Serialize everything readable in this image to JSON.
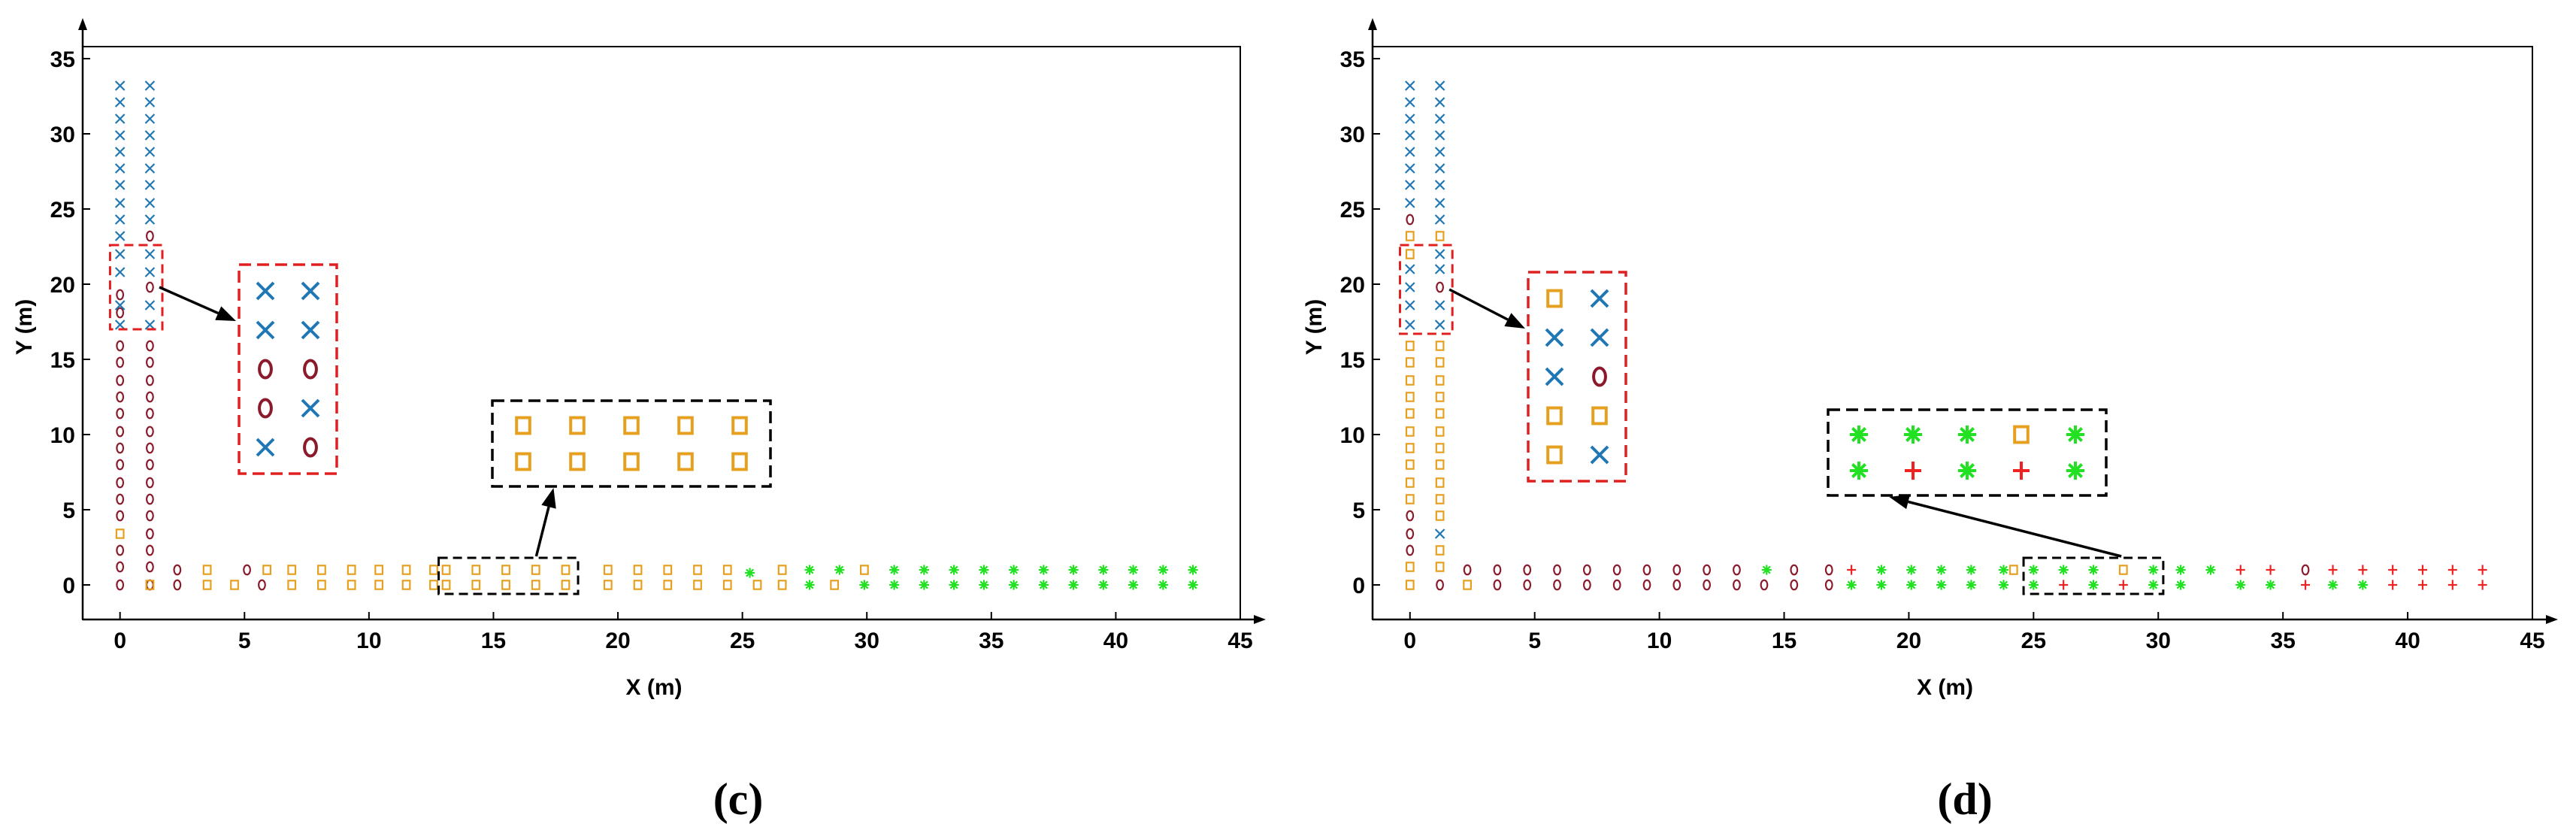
{
  "colors": {
    "x_marker": "#1f77b4",
    "o_marker": "#8b1a2b",
    "square_marker": "#e6a020",
    "star_marker": "#22e022",
    "plus_marker": "#ee2222",
    "zoom_box_red": "#e02020",
    "zoom_box_black": "#000000"
  },
  "chart_data": [
    {
      "type": "scatter",
      "panel_label": "c",
      "panel_label_left": "(",
      "panel_label_right": ")",
      "xlabel": "X (m)",
      "ylabel": "Y (m)",
      "xlim": [
        -1.5,
        45
      ],
      "ylim": [
        -2.3,
        35.8
      ],
      "xticks": [
        "0",
        "5",
        "10",
        "15",
        "20",
        "25",
        "30",
        "35",
        "40",
        "45"
      ],
      "yticks": [
        "0",
        "5",
        "10",
        "15",
        "20",
        "25",
        "30",
        "35"
      ],
      "grid": false,
      "markers": {
        "x": [
          [
            0,
            17.3
          ],
          [
            0,
            18.6
          ],
          [
            0,
            20.8
          ],
          [
            0,
            22.0
          ],
          [
            0,
            23.2
          ],
          [
            0,
            24.3
          ],
          [
            0,
            25.4
          ],
          [
            0,
            26.6
          ],
          [
            0,
            27.7
          ],
          [
            0,
            28.8
          ],
          [
            0,
            29.9
          ],
          [
            0,
            31.0
          ],
          [
            0,
            32.1
          ],
          [
            0,
            33.2
          ],
          [
            1.2,
            17.3
          ],
          [
            1.2,
            18.6
          ],
          [
            1.2,
            20.8
          ],
          [
            1.2,
            22.0
          ],
          [
            1.2,
            24.3
          ],
          [
            1.2,
            25.4
          ],
          [
            1.2,
            26.6
          ],
          [
            1.2,
            27.7
          ],
          [
            1.2,
            28.8
          ],
          [
            1.2,
            29.9
          ],
          [
            1.2,
            31.0
          ],
          [
            1.2,
            32.1
          ],
          [
            1.2,
            33.2
          ]
        ],
        "o": [
          [
            0,
            0
          ],
          [
            0,
            1.2
          ],
          [
            0,
            2.3
          ],
          [
            0,
            4.6
          ],
          [
            0,
            5.7
          ],
          [
            0,
            6.8
          ],
          [
            0,
            8.0
          ],
          [
            0,
            9.1
          ],
          [
            0,
            10.2
          ],
          [
            0,
            11.4
          ],
          [
            0,
            12.5
          ],
          [
            0,
            13.6
          ],
          [
            0,
            14.8
          ],
          [
            0,
            15.9
          ],
          [
            0,
            18.1
          ],
          [
            0,
            19.3
          ],
          [
            1.2,
            0
          ],
          [
            1.2,
            1.2
          ],
          [
            1.2,
            2.3
          ],
          [
            1.2,
            3.4
          ],
          [
            1.2,
            4.6
          ],
          [
            1.2,
            5.7
          ],
          [
            1.2,
            6.8
          ],
          [
            1.2,
            8.0
          ],
          [
            1.2,
            9.1
          ],
          [
            1.2,
            10.2
          ],
          [
            1.2,
            11.4
          ],
          [
            1.2,
            12.5
          ],
          [
            1.2,
            13.6
          ],
          [
            1.2,
            14.8
          ],
          [
            1.2,
            15.9
          ],
          [
            1.2,
            19.8
          ],
          [
            1.2,
            23.2
          ],
          [
            2.3,
            0
          ],
          [
            2.3,
            1.0
          ],
          [
            5.7,
            0
          ],
          [
            5.1,
            1.0
          ]
        ],
        "square": [
          [
            0,
            3.4
          ],
          [
            1.2,
            0
          ],
          [
            3.5,
            0
          ],
          [
            3.5,
            1.0
          ],
          [
            4.6,
            0
          ],
          [
            5.9,
            1.0
          ],
          [
            6.9,
            0
          ],
          [
            6.9,
            1.0
          ],
          [
            8.1,
            0
          ],
          [
            8.1,
            1.0
          ],
          [
            9.3,
            0
          ],
          [
            9.3,
            1.0
          ],
          [
            10.4,
            0
          ],
          [
            10.4,
            1.0
          ],
          [
            11.5,
            0
          ],
          [
            11.5,
            1.0
          ],
          [
            12.6,
            0
          ],
          [
            12.6,
            1.0
          ],
          [
            13.1,
            0
          ],
          [
            13.1,
            1.0
          ],
          [
            14.3,
            0
          ],
          [
            14.3,
            1.0
          ],
          [
            15.5,
            0
          ],
          [
            15.5,
            1.0
          ],
          [
            16.7,
            0
          ],
          [
            16.7,
            1.0
          ],
          [
            17.9,
            0
          ],
          [
            17.9,
            1.0
          ],
          [
            19.6,
            0
          ],
          [
            19.6,
            1.0
          ],
          [
            20.8,
            0
          ],
          [
            20.8,
            1.0
          ],
          [
            22.0,
            0
          ],
          [
            22.0,
            1.0
          ],
          [
            23.2,
            0
          ],
          [
            23.2,
            1.0
          ],
          [
            24.4,
            0
          ],
          [
            24.4,
            1.0
          ],
          [
            25.6,
            0
          ],
          [
            26.6,
            0
          ],
          [
            26.6,
            1.0
          ],
          [
            28.7,
            0
          ],
          [
            29.9,
            1.0
          ]
        ],
        "star": [
          [
            25.3,
            0.8
          ],
          [
            27.7,
            0
          ],
          [
            27.7,
            1.0
          ],
          [
            28.9,
            1.0
          ],
          [
            29.9,
            0
          ],
          [
            31.1,
            0
          ],
          [
            31.1,
            1.0
          ],
          [
            32.3,
            0
          ],
          [
            32.3,
            1.0
          ],
          [
            33.5,
            0
          ],
          [
            33.5,
            1.0
          ],
          [
            34.7,
            0
          ],
          [
            34.7,
            1.0
          ],
          [
            35.9,
            0
          ],
          [
            35.9,
            1.0
          ],
          [
            37.1,
            0
          ],
          [
            37.1,
            1.0
          ],
          [
            38.3,
            0
          ],
          [
            38.3,
            1.0
          ],
          [
            39.5,
            0
          ],
          [
            39.5,
            1.0
          ],
          [
            40.7,
            0
          ],
          [
            40.7,
            1.0
          ],
          [
            41.9,
            0
          ],
          [
            41.9,
            1.0
          ],
          [
            43.1,
            0
          ],
          [
            43.1,
            1.0
          ]
        ],
        "plus": []
      },
      "zoom_src": [
        {
          "color": "red",
          "x": [
            -0.4,
            1.7
          ],
          "y": [
            17.0,
            22.6
          ]
        },
        {
          "color": "black",
          "x": [
            12.8,
            18.4
          ],
          "y": [
            -0.6,
            1.8
          ]
        }
      ],
      "insets": [
        {
          "color": "red",
          "cols": 2,
          "rows": [
            [
              "x",
              "x"
            ],
            [
              "x",
              "x"
            ],
            [
              "o",
              "o"
            ],
            [
              "o",
              "x"
            ],
            [
              "x",
              "o"
            ]
          ]
        },
        {
          "color": "black",
          "cols": 5,
          "rows": [
            [
              "square",
              "square",
              "square",
              "square",
              "square"
            ],
            [
              "square",
              "square",
              "square",
              "square",
              "square"
            ]
          ]
        }
      ]
    },
    {
      "type": "scatter",
      "panel_label": "d",
      "panel_label_left": "(",
      "panel_label_right": ")",
      "xlabel": "X (m)",
      "ylabel": "Y (m)",
      "xlim": [
        -1.5,
        45
      ],
      "ylim": [
        -2.3,
        35.8
      ],
      "xticks": [
        "0",
        "5",
        "10",
        "15",
        "20",
        "25",
        "30",
        "35",
        "40",
        "45"
      ],
      "yticks": [
        "0",
        "5",
        "10",
        "15",
        "20",
        "25",
        "30",
        "35"
      ],
      "grid": false,
      "markers": {
        "x": [
          [
            0,
            17.3
          ],
          [
            0,
            18.6
          ],
          [
            0,
            19.8
          ],
          [
            0,
            21.0
          ],
          [
            0,
            25.4
          ],
          [
            0,
            26.6
          ],
          [
            0,
            27.7
          ],
          [
            0,
            28.8
          ],
          [
            0,
            29.9
          ],
          [
            0,
            31.0
          ],
          [
            0,
            32.1
          ],
          [
            0,
            33.2
          ],
          [
            1.2,
            3.4
          ],
          [
            1.2,
            17.3
          ],
          [
            1.2,
            18.6
          ],
          [
            1.2,
            21.0
          ],
          [
            1.2,
            22.0
          ],
          [
            1.2,
            24.3
          ],
          [
            1.2,
            25.4
          ],
          [
            1.2,
            26.6
          ],
          [
            1.2,
            27.7
          ],
          [
            1.2,
            28.8
          ],
          [
            1.2,
            29.9
          ],
          [
            1.2,
            31.0
          ],
          [
            1.2,
            32.1
          ],
          [
            1.2,
            33.2
          ]
        ],
        "o": [
          [
            0,
            2.3
          ],
          [
            0,
            3.4
          ],
          [
            0,
            4.6
          ],
          [
            0,
            24.3
          ],
          [
            1.2,
            0
          ],
          [
            1.2,
            19.8
          ],
          [
            2.3,
            1.0
          ],
          [
            3.5,
            0
          ],
          [
            3.5,
            1.0
          ],
          [
            4.7,
            0
          ],
          [
            4.7,
            1.0
          ],
          [
            5.9,
            0
          ],
          [
            5.9,
            1.0
          ],
          [
            7.1,
            0
          ],
          [
            7.1,
            1.0
          ],
          [
            8.3,
            0
          ],
          [
            8.3,
            1.0
          ],
          [
            9.5,
            0
          ],
          [
            9.5,
            1.0
          ],
          [
            10.7,
            0
          ],
          [
            10.7,
            1.0
          ],
          [
            11.9,
            0
          ],
          [
            11.9,
            1.0
          ],
          [
            13.1,
            0
          ],
          [
            13.1,
            1.0
          ],
          [
            14.2,
            0
          ],
          [
            15.4,
            0
          ],
          [
            15.4,
            1.0
          ],
          [
            16.8,
            0
          ],
          [
            16.8,
            1.0
          ],
          [
            35.9,
            1.0
          ]
        ],
        "square": [
          [
            0,
            0
          ],
          [
            0,
            1.2
          ],
          [
            0,
            5.7
          ],
          [
            0,
            6.8
          ],
          [
            0,
            8.0
          ],
          [
            0,
            9.1
          ],
          [
            0,
            10.2
          ],
          [
            0,
            11.4
          ],
          [
            0,
            12.5
          ],
          [
            0,
            13.6
          ],
          [
            0,
            14.8
          ],
          [
            0,
            15.9
          ],
          [
            0,
            22.0
          ],
          [
            0,
            23.2
          ],
          [
            1.2,
            1.2
          ],
          [
            1.2,
            2.3
          ],
          [
            1.2,
            4.6
          ],
          [
            1.2,
            5.7
          ],
          [
            1.2,
            6.8
          ],
          [
            1.2,
            8.0
          ],
          [
            1.2,
            9.1
          ],
          [
            1.2,
            10.2
          ],
          [
            1.2,
            11.4
          ],
          [
            1.2,
            12.5
          ],
          [
            1.2,
            13.6
          ],
          [
            1.2,
            14.8
          ],
          [
            1.2,
            15.9
          ],
          [
            1.2,
            23.2
          ],
          [
            2.3,
            0
          ],
          [
            24.2,
            1.0
          ],
          [
            28.6,
            1.0
          ]
        ],
        "star": [
          [
            14.3,
            1.0
          ],
          [
            17.7,
            0
          ],
          [
            18.9,
            0
          ],
          [
            18.9,
            1.0
          ],
          [
            20.1,
            0
          ],
          [
            20.1,
            1.0
          ],
          [
            21.3,
            0
          ],
          [
            21.3,
            1.0
          ],
          [
            22.5,
            0
          ],
          [
            22.5,
            1.0
          ],
          [
            23.8,
            0
          ],
          [
            23.8,
            1.0
          ],
          [
            25.0,
            0
          ],
          [
            25.0,
            1.0
          ],
          [
            26.2,
            1.0
          ],
          [
            27.4,
            0
          ],
          [
            27.4,
            1.0
          ],
          [
            29.8,
            0
          ],
          [
            29.8,
            1.0
          ],
          [
            30.9,
            0
          ],
          [
            30.9,
            1.0
          ],
          [
            32.1,
            1.0
          ],
          [
            33.3,
            0
          ],
          [
            34.5,
            0
          ],
          [
            37.0,
            0
          ],
          [
            38.2,
            0
          ]
        ],
        "plus": [
          [
            17.7,
            1.0
          ],
          [
            26.2,
            0
          ],
          [
            28.6,
            0
          ],
          [
            33.3,
            1.0
          ],
          [
            34.5,
            1.0
          ],
          [
            35.9,
            0
          ],
          [
            37.0,
            1.0
          ],
          [
            38.2,
            1.0
          ],
          [
            39.4,
            0
          ],
          [
            39.4,
            1.0
          ],
          [
            40.6,
            0
          ],
          [
            40.6,
            1.0
          ],
          [
            41.8,
            0
          ],
          [
            41.8,
            1.0
          ],
          [
            43.0,
            0
          ],
          [
            43.0,
            1.0
          ]
        ]
      },
      "zoom_src": [
        {
          "color": "red",
          "x": [
            -0.4,
            1.7
          ],
          "y": [
            16.7,
            22.6
          ]
        },
        {
          "color": "black",
          "x": [
            24.6,
            30.2
          ],
          "y": [
            -0.6,
            1.8
          ]
        }
      ],
      "insets": [
        {
          "color": "red",
          "cols": 2,
          "rows": [
            [
              "square",
              "x"
            ],
            [
              "x",
              "x"
            ],
            [
              "x",
              "o"
            ],
            [
              "square",
              "square"
            ],
            [
              "square",
              "x"
            ]
          ]
        },
        {
          "color": "black",
          "cols": 5,
          "rows": [
            [
              "star",
              "star",
              "star",
              "square",
              "star"
            ],
            [
              "star",
              "plus",
              "star",
              "plus",
              "star"
            ]
          ]
        }
      ]
    }
  ]
}
